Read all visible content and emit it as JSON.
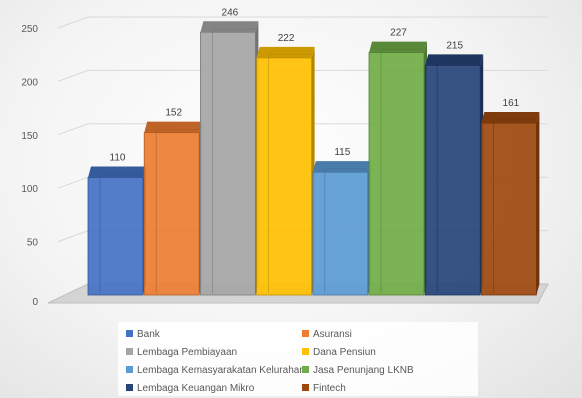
{
  "chart_data": {
    "type": "bar",
    "title": "",
    "xlabel": "",
    "ylabel": "",
    "ylim": [
      0,
      250
    ],
    "yticks": [
      0,
      50,
      100,
      150,
      200,
      250
    ],
    "grid": true,
    "legend_position": "bottom",
    "series": [
      {
        "name": "Bank",
        "value": 110,
        "color": "#4472C4"
      },
      {
        "name": "Asuransi",
        "value": 152,
        "color": "#ED7D31"
      },
      {
        "name": "Lembaga Pembiayaan",
        "value": 246,
        "color": "#A5A5A5"
      },
      {
        "name": "Dana Pensiun",
        "value": 222,
        "color": "#FFC000"
      },
      {
        "name": "Lembaga Kemasyarakatan Kelurahan",
        "value": 115,
        "color": "#5B9BD5"
      },
      {
        "name": "Jasa Penunjang LKNB",
        "value": 227,
        "color": "#70AD47"
      },
      {
        "name": "Lembaga Keuangan Mikro",
        "value": 215,
        "color": "#264478"
      },
      {
        "name": "Fintech",
        "value": 161,
        "color": "#9E480E"
      }
    ]
  }
}
